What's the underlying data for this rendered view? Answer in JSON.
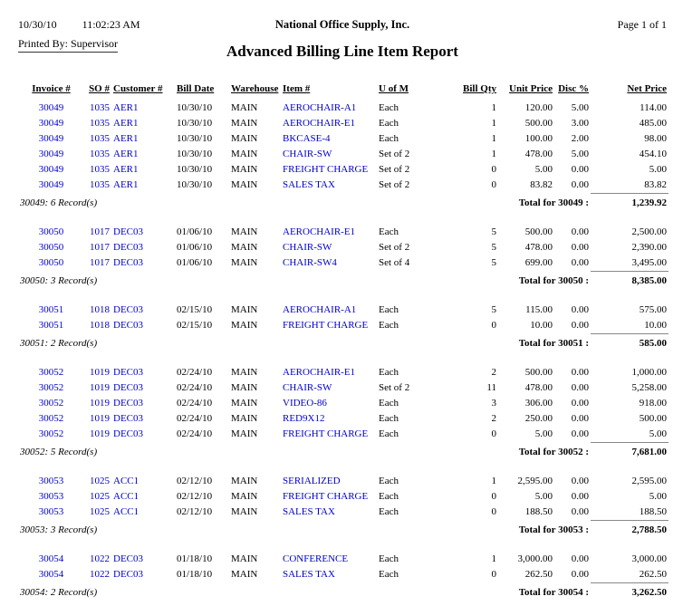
{
  "page": {
    "date": "10/30/10",
    "time": "11:02:23 AM",
    "company": "National Office Supply, Inc.",
    "page_label": "Page 1 of 1",
    "printed_by": "Printed By: Supervisor",
    "title": "Advanced Billing Line Item Report"
  },
  "colors": {
    "link_blue": "#0000cc"
  },
  "table": {
    "columns": [
      {
        "key": "invoice",
        "label": "Invoice #"
      },
      {
        "key": "so",
        "label": "SO #"
      },
      {
        "key": "customer",
        "label": "Customer #"
      },
      {
        "key": "bill_date",
        "label": "Bill Date"
      },
      {
        "key": "warehouse",
        "label": "Warehouse"
      },
      {
        "key": "item",
        "label": "Item #"
      },
      {
        "key": "uom",
        "label": "U of M"
      },
      {
        "key": "qty",
        "label": "Bill Qty"
      },
      {
        "key": "unit_price",
        "label": "Unit Price"
      },
      {
        "key": "disc",
        "label": "Disc %"
      },
      {
        "key": "net_price",
        "label": "Net Price"
      }
    ],
    "groups": [
      {
        "rows": [
          {
            "invoice": "30049",
            "so": "1035",
            "customer": "AER1",
            "bill_date": "10/30/10",
            "warehouse": "MAIN",
            "item": "AEROCHAIR-A1",
            "uom": "Each",
            "qty": "1",
            "unit_price": "120.00",
            "disc": "5.00",
            "net_price": "114.00"
          },
          {
            "invoice": "30049",
            "so": "1035",
            "customer": "AER1",
            "bill_date": "10/30/10",
            "warehouse": "MAIN",
            "item": "AEROCHAIR-E1",
            "uom": "Each",
            "qty": "1",
            "unit_price": "500.00",
            "disc": "3.00",
            "net_price": "485.00"
          },
          {
            "invoice": "30049",
            "so": "1035",
            "customer": "AER1",
            "bill_date": "10/30/10",
            "warehouse": "MAIN",
            "item": "BKCASE-4",
            "uom": "Each",
            "qty": "1",
            "unit_price": "100.00",
            "disc": "2.00",
            "net_price": "98.00"
          },
          {
            "invoice": "30049",
            "so": "1035",
            "customer": "AER1",
            "bill_date": "10/30/10",
            "warehouse": "MAIN",
            "item": "CHAIR-SW",
            "uom": "Set of 2",
            "qty": "1",
            "unit_price": "478.00",
            "disc": "5.00",
            "net_price": "454.10"
          },
          {
            "invoice": "30049",
            "so": "1035",
            "customer": "AER1",
            "bill_date": "10/30/10",
            "warehouse": "MAIN",
            "item": "FREIGHT CHARGE",
            "uom": "Set of 2",
            "qty": "0",
            "unit_price": "5.00",
            "disc": "0.00",
            "net_price": "5.00"
          },
          {
            "invoice": "30049",
            "so": "1035",
            "customer": "AER1",
            "bill_date": "10/30/10",
            "warehouse": "MAIN",
            "item": "SALES TAX",
            "uom": "Set of 2",
            "qty": "0",
            "unit_price": "83.82",
            "disc": "0.00",
            "net_price": "83.82"
          }
        ],
        "record_count": "30049: 6 Record(s)",
        "total_label": "Total for 30049 :",
        "total": "1,239.92"
      },
      {
        "rows": [
          {
            "invoice": "30050",
            "so": "1017",
            "customer": "DEC03",
            "bill_date": "01/06/10",
            "warehouse": "MAIN",
            "item": "AEROCHAIR-E1",
            "uom": "Each",
            "qty": "5",
            "unit_price": "500.00",
            "disc": "0.00",
            "net_price": "2,500.00"
          },
          {
            "invoice": "30050",
            "so": "1017",
            "customer": "DEC03",
            "bill_date": "01/06/10",
            "warehouse": "MAIN",
            "item": "CHAIR-SW",
            "uom": "Set of 2",
            "qty": "5",
            "unit_price": "478.00",
            "disc": "0.00",
            "net_price": "2,390.00"
          },
          {
            "invoice": "30050",
            "so": "1017",
            "customer": "DEC03",
            "bill_date": "01/06/10",
            "warehouse": "MAIN",
            "item": "CHAIR-SW4",
            "uom": "Set of 4",
            "qty": "5",
            "unit_price": "699.00",
            "disc": "0.00",
            "net_price": "3,495.00"
          }
        ],
        "record_count": "30050: 3 Record(s)",
        "total_label": "Total for 30050 :",
        "total": "8,385.00"
      },
      {
        "rows": [
          {
            "invoice": "30051",
            "so": "1018",
            "customer": "DEC03",
            "bill_date": "02/15/10",
            "warehouse": "MAIN",
            "item": "AEROCHAIR-A1",
            "uom": "Each",
            "qty": "5",
            "unit_price": "115.00",
            "disc": "0.00",
            "net_price": "575.00"
          },
          {
            "invoice": "30051",
            "so": "1018",
            "customer": "DEC03",
            "bill_date": "02/15/10",
            "warehouse": "MAIN",
            "item": "FREIGHT CHARGE",
            "uom": "Each",
            "qty": "0",
            "unit_price": "10.00",
            "disc": "0.00",
            "net_price": "10.00"
          }
        ],
        "record_count": "30051: 2 Record(s)",
        "total_label": "Total for 30051 :",
        "total": "585.00"
      },
      {
        "rows": [
          {
            "invoice": "30052",
            "so": "1019",
            "customer": "DEC03",
            "bill_date": "02/24/10",
            "warehouse": "MAIN",
            "item": "AEROCHAIR-E1",
            "uom": "Each",
            "qty": "2",
            "unit_price": "500.00",
            "disc": "0.00",
            "net_price": "1,000.00"
          },
          {
            "invoice": "30052",
            "so": "1019",
            "customer": "DEC03",
            "bill_date": "02/24/10",
            "warehouse": "MAIN",
            "item": "CHAIR-SW",
            "uom": "Set of 2",
            "qty": "11",
            "unit_price": "478.00",
            "disc": "0.00",
            "net_price": "5,258.00"
          },
          {
            "invoice": "30052",
            "so": "1019",
            "customer": "DEC03",
            "bill_date": "02/24/10",
            "warehouse": "MAIN",
            "item": "VIDEO-86",
            "uom": "Each",
            "qty": "3",
            "unit_price": "306.00",
            "disc": "0.00",
            "net_price": "918.00"
          },
          {
            "invoice": "30052",
            "so": "1019",
            "customer": "DEC03",
            "bill_date": "02/24/10",
            "warehouse": "MAIN",
            "item": "RED9X12",
            "uom": "Each",
            "qty": "2",
            "unit_price": "250.00",
            "disc": "0.00",
            "net_price": "500.00"
          },
          {
            "invoice": "30052",
            "so": "1019",
            "customer": "DEC03",
            "bill_date": "02/24/10",
            "warehouse": "MAIN",
            "item": "FREIGHT CHARGE",
            "uom": "Each",
            "qty": "0",
            "unit_price": "5.00",
            "disc": "0.00",
            "net_price": "5.00"
          }
        ],
        "record_count": "30052: 5 Record(s)",
        "total_label": "Total for 30052 :",
        "total": "7,681.00"
      },
      {
        "rows": [
          {
            "invoice": "30053",
            "so": "1025",
            "customer": "ACC1",
            "bill_date": "02/12/10",
            "warehouse": "MAIN",
            "item": "SERIALIZED",
            "uom": "Each",
            "qty": "1",
            "unit_price": "2,595.00",
            "disc": "0.00",
            "net_price": "2,595.00"
          },
          {
            "invoice": "30053",
            "so": "1025",
            "customer": "ACC1",
            "bill_date": "02/12/10",
            "warehouse": "MAIN",
            "item": "FREIGHT CHARGE",
            "uom": "Each",
            "qty": "0",
            "unit_price": "5.00",
            "disc": "0.00",
            "net_price": "5.00"
          },
          {
            "invoice": "30053",
            "so": "1025",
            "customer": "ACC1",
            "bill_date": "02/12/10",
            "warehouse": "MAIN",
            "item": "SALES TAX",
            "uom": "Each",
            "qty": "0",
            "unit_price": "188.50",
            "disc": "0.00",
            "net_price": "188.50"
          }
        ],
        "record_count": "30053: 3 Record(s)",
        "total_label": "Total for 30053 :",
        "total": "2,788.50"
      },
      {
        "rows": [
          {
            "invoice": "30054",
            "so": "1022",
            "customer": "DEC03",
            "bill_date": "01/18/10",
            "warehouse": "MAIN",
            "item": "CONFERENCE",
            "uom": "Each",
            "qty": "1",
            "unit_price": "3,000.00",
            "disc": "0.00",
            "net_price": "3,000.00"
          },
          {
            "invoice": "30054",
            "so": "1022",
            "customer": "DEC03",
            "bill_date": "01/18/10",
            "warehouse": "MAIN",
            "item": "SALES TAX",
            "uom": "Each",
            "qty": "0",
            "unit_price": "262.50",
            "disc": "0.00",
            "net_price": "262.50"
          }
        ],
        "record_count": "30054: 2 Record(s)",
        "total_label": "Total for 30054 :",
        "total": "3,262.50"
      }
    ]
  }
}
